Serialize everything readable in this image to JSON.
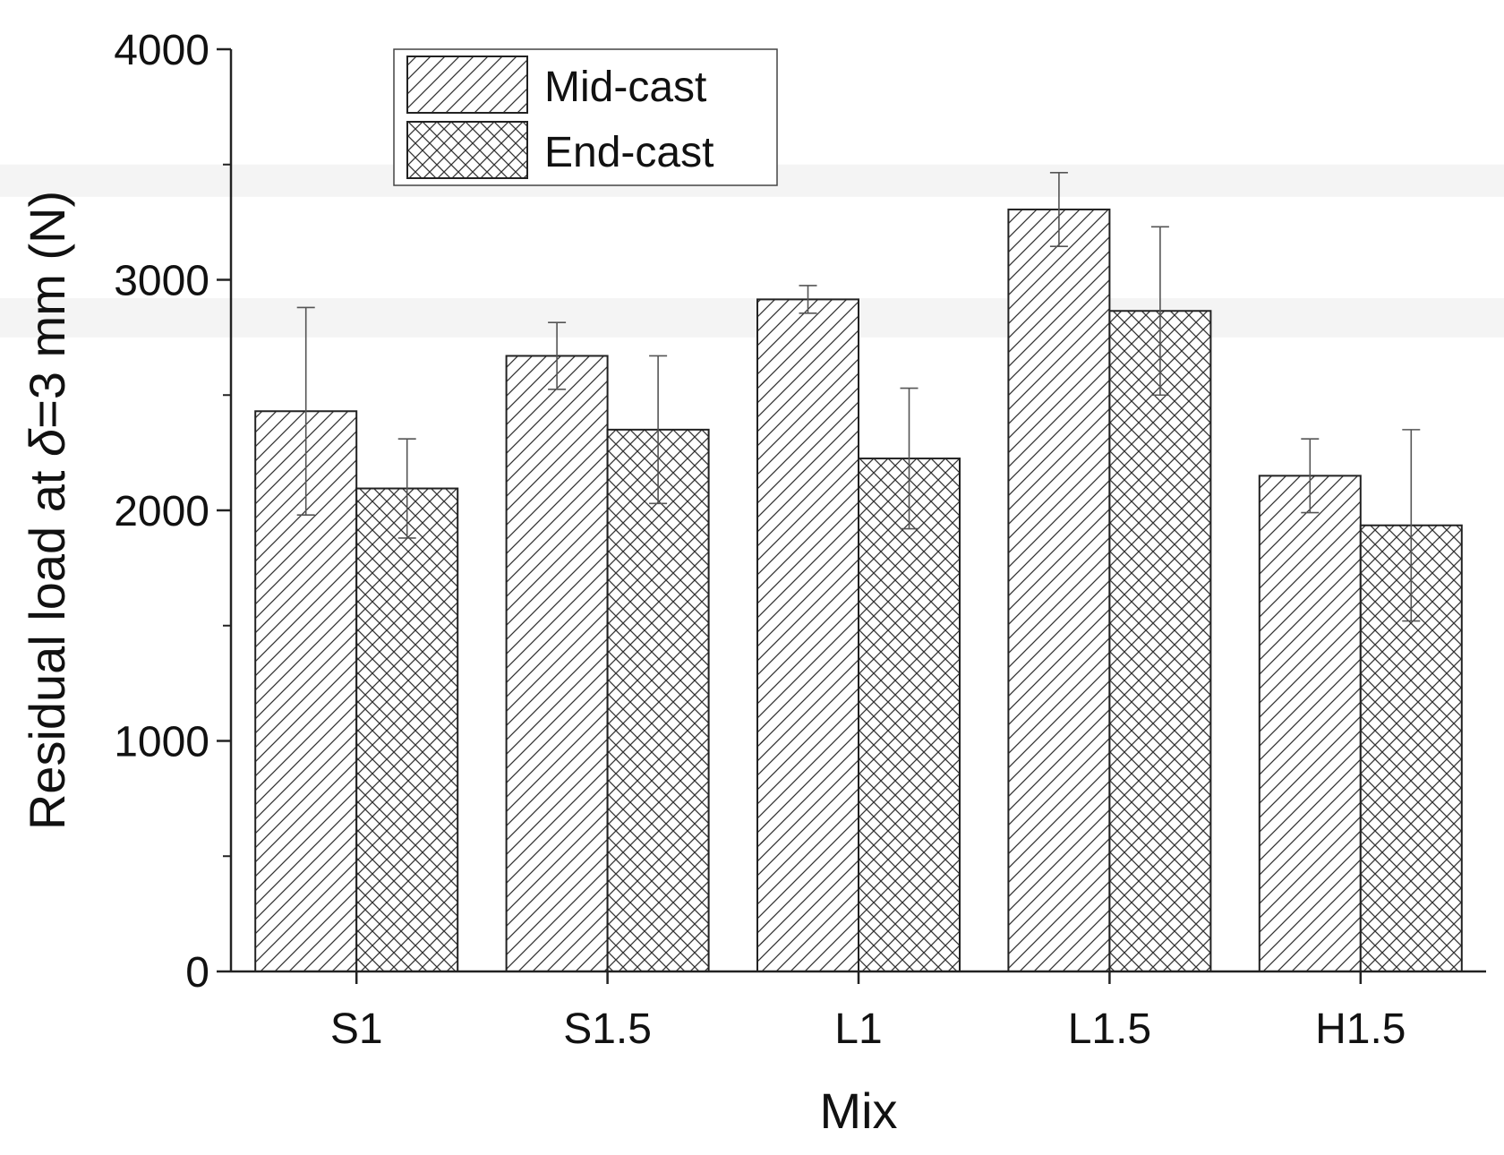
{
  "chart_data": {
    "type": "bar",
    "title": "",
    "xlabel": "Mix",
    "ylabel_prefix": "Residual load at ",
    "ylabel_symbol": "δ",
    "ylabel_suffix": "=3 mm (N)",
    "categories": [
      "S1",
      "S1.5",
      "L1",
      "L1.5",
      "H1.5"
    ],
    "series": [
      {
        "name": "Mid-cast",
        "pattern": "diagonal-hatch",
        "values": [
          2430,
          2670,
          2915,
          3305,
          2150
        ],
        "errors": [
          450,
          145,
          60,
          160,
          160
        ]
      },
      {
        "name": "End-cast",
        "pattern": "cross-hatch",
        "values": [
          2095,
          2350,
          2225,
          2865,
          1935
        ],
        "errors": [
          215,
          320,
          305,
          365,
          415
        ]
      }
    ],
    "ylim": [
      0,
      4000
    ],
    "yticks": [
      0,
      1000,
      2000,
      3000,
      4000
    ],
    "yminor_ticks": [
      500,
      1500,
      2500,
      3500
    ],
    "grid": false,
    "legend_position": "top-left"
  },
  "colors": {
    "axis": "#222222",
    "bar_fill": "#ffffff",
    "hatch": "#333333",
    "error_bar": "#555555",
    "background_band": "#f4f4f4"
  }
}
